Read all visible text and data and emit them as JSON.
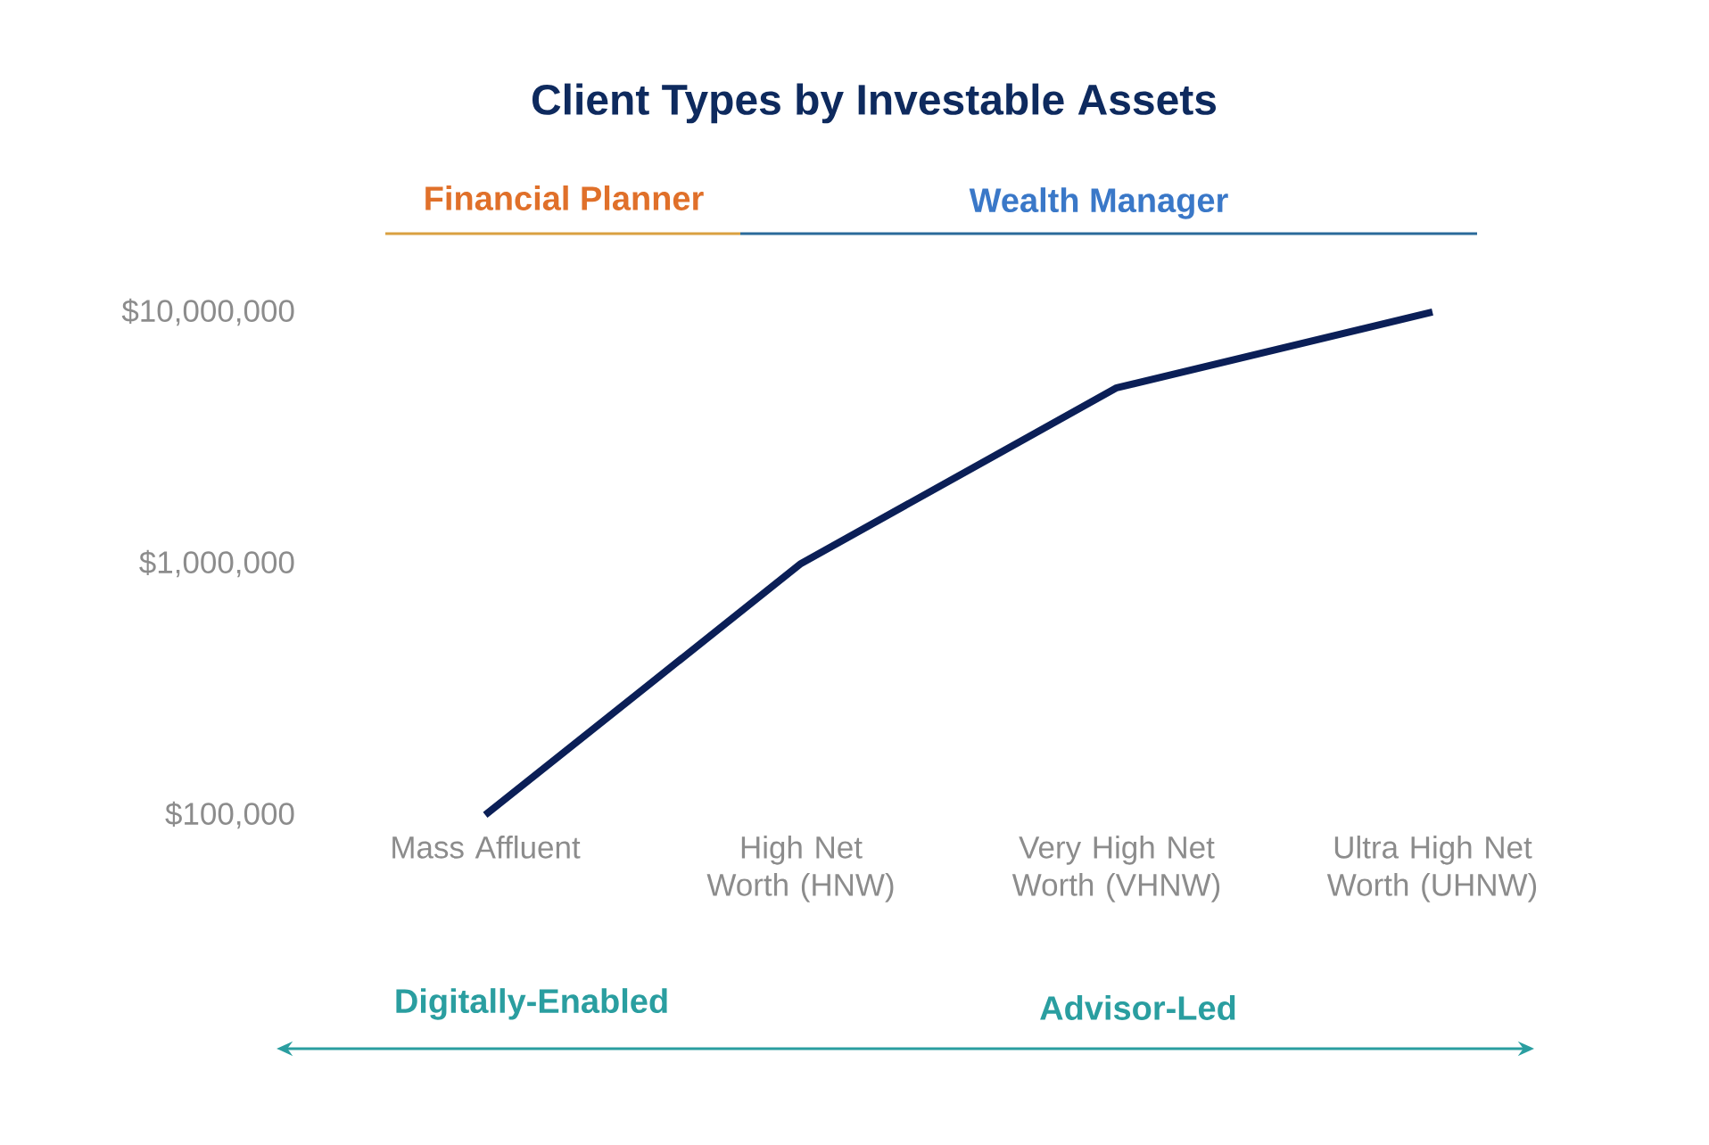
{
  "chart_data": {
    "type": "line",
    "title": "Client Types by Investable Assets",
    "categories": [
      "Mass Affluent",
      "High Net Worth (HNW)",
      "Very High Net Worth (VHNW)",
      "Ultra High Net Worth (UHNW)"
    ],
    "series": [
      {
        "color": "#0b1f57",
        "values": [
          100000,
          1000000,
          5000000,
          10000000
        ]
      }
    ],
    "log": true,
    "ylim": [
      100000,
      10000000
    ],
    "yticks": [
      {
        "value": 100000,
        "label": "$100,000"
      },
      {
        "value": 1000000,
        "label": "$1,000,000"
      },
      {
        "value": 10000000,
        "label": "$10,000,000"
      }
    ],
    "annotations": [
      "Financial Planner",
      "Wealth Manager",
      "Digitally-Enabled",
      "Advisor-Led"
    ]
  }
}
